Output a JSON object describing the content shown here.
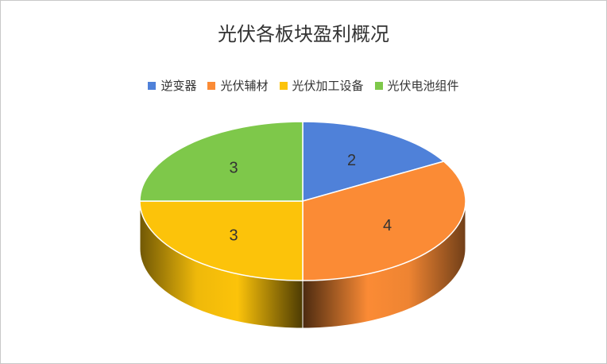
{
  "chart_data": {
    "type": "pie",
    "title": "光伏各板块盈利概况",
    "categories": [
      "逆变器",
      "光伏辅材",
      "光伏加工设备",
      "光伏电池组件"
    ],
    "values": [
      2,
      4,
      3,
      3
    ],
    "colors": [
      "#4f81d9",
      "#fb8b35",
      "#fcc30a",
      "#7ec84a"
    ],
    "legend_position": "top",
    "style": "3d"
  }
}
